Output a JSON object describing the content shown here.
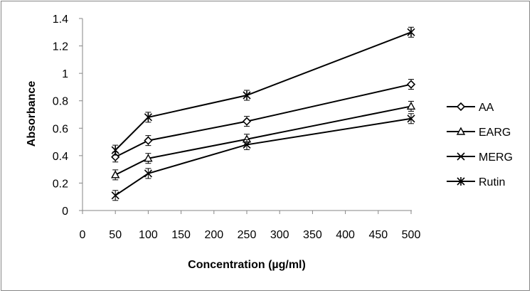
{
  "chart_data": {
    "type": "line",
    "title": "",
    "xlabel": "Concentration (µg/ml)",
    "ylabel": "Absorbance",
    "xlim": [
      0,
      500
    ],
    "ylim": [
      0,
      1.4
    ],
    "xticks": [
      "0",
      "50",
      "100",
      "150",
      "200",
      "250",
      "300",
      "350",
      "400",
      "450",
      "500"
    ],
    "yticks": [
      "0",
      "0.2",
      "0.4",
      "0.6",
      "0.8",
      "1",
      "1.2",
      "1.4"
    ],
    "grid": false,
    "legend_position": "right",
    "x": [
      50,
      100,
      250,
      500
    ],
    "series": [
      {
        "name": "AA",
        "marker": "diamond",
        "values": [
          0.39,
          0.51,
          0.65,
          0.92
        ]
      },
      {
        "name": "EARG",
        "marker": "triangle",
        "values": [
          0.26,
          0.38,
          0.52,
          0.76
        ]
      },
      {
        "name": "MERG",
        "marker": "x",
        "values": [
          0.11,
          0.27,
          0.48,
          0.67
        ]
      },
      {
        "name": "Rutin",
        "marker": "star",
        "values": [
          0.44,
          0.68,
          0.84,
          1.3
        ]
      }
    ],
    "line_color": "#000000"
  }
}
